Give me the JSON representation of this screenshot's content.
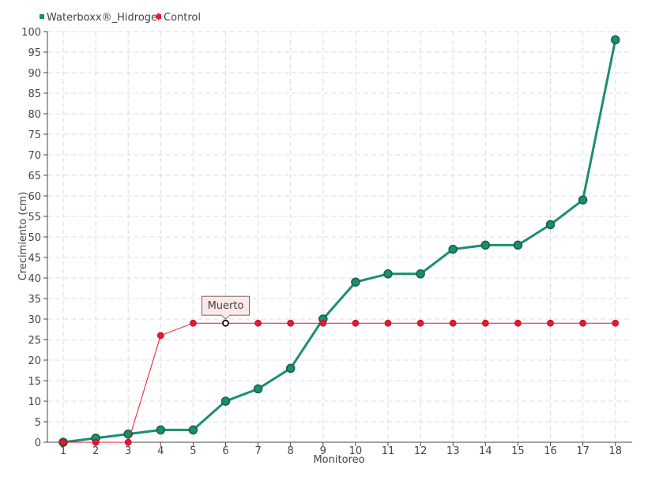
{
  "chart_data": {
    "type": "line",
    "title": "",
    "xlabel": "Monitoreo",
    "ylabel": "Crecimiento (cm)",
    "categories": [
      "1",
      "2",
      "3",
      "4",
      "5",
      "6",
      "7",
      "8",
      "9",
      "10",
      "11",
      "12",
      "13",
      "14",
      "15",
      "16",
      "17",
      "18"
    ],
    "ylim": [
      0,
      100
    ],
    "ytick_step": 5,
    "grid": true,
    "legend_position": "top-left",
    "series": [
      {
        "name": "Waterboxx®_Hidrogel",
        "color": "#1a8f6f",
        "values": [
          0,
          1,
          2,
          3,
          3,
          10,
          13,
          18,
          30,
          39,
          41,
          41,
          47,
          48,
          48,
          53,
          59,
          98
        ]
      },
      {
        "name": "Control",
        "color": "#e8192c",
        "values": [
          0,
          0,
          0,
          26,
          29,
          29,
          29,
          29,
          29,
          29,
          29,
          29,
          29,
          29,
          29,
          29,
          29,
          29
        ]
      }
    ],
    "annotations": [
      {
        "label": "Muerto",
        "series": "Control",
        "category": "6",
        "value": 29
      }
    ]
  }
}
